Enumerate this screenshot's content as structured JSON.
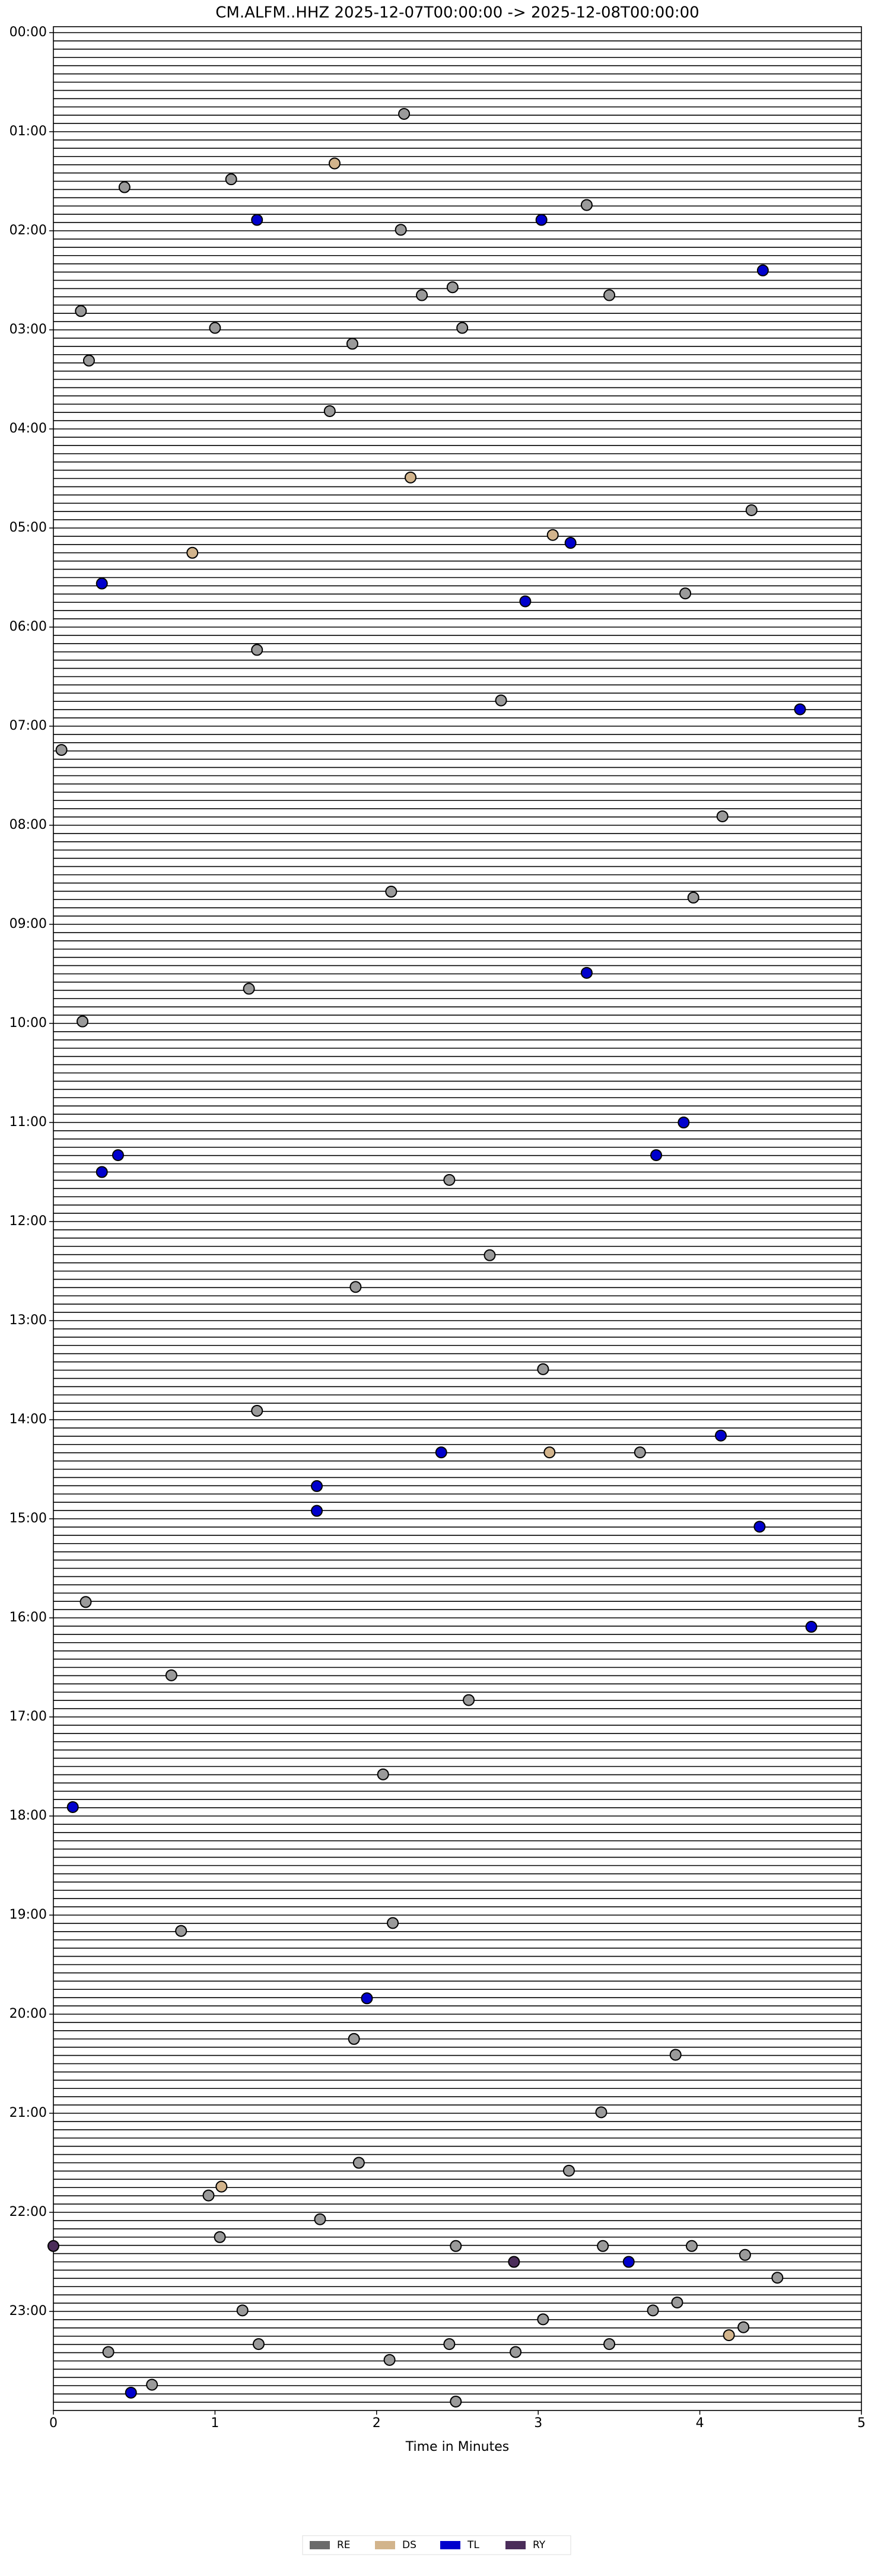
{
  "chart_data": {
    "type": "scatter",
    "title": "CM.ALFM..HHZ  2025-12-07T00:00:00 -> 2025-12-08T00:00:00",
    "xlabel": "Time in Minutes",
    "xlim": [
      0,
      5
    ],
    "xticks": [
      0,
      1,
      2,
      3,
      4,
      5
    ],
    "ylim": [
      0,
      24
    ],
    "y_inverted": true,
    "yticks": [
      {
        "value": 0,
        "label": "00:00"
      },
      {
        "value": 1,
        "label": "01:00"
      },
      {
        "value": 2,
        "label": "02:00"
      },
      {
        "value": 3,
        "label": "03:00"
      },
      {
        "value": 4,
        "label": "04:00"
      },
      {
        "value": 5,
        "label": "05:00"
      },
      {
        "value": 6,
        "label": "06:00"
      },
      {
        "value": 7,
        "label": "07:00"
      },
      {
        "value": 8,
        "label": "08:00"
      },
      {
        "value": 9,
        "label": "09:00"
      },
      {
        "value": 10,
        "label": "10:00"
      },
      {
        "value": 11,
        "label": "11:00"
      },
      {
        "value": 12,
        "label": "12:00"
      },
      {
        "value": 13,
        "label": "13:00"
      },
      {
        "value": 14,
        "label": "14:00"
      },
      {
        "value": 15,
        "label": "15:00"
      },
      {
        "value": 16,
        "label": "16:00"
      },
      {
        "value": 17,
        "label": "17:00"
      },
      {
        "value": 18,
        "label": "18:00"
      },
      {
        "value": 19,
        "label": "19:00"
      },
      {
        "value": 20,
        "label": "20:00"
      },
      {
        "value": 21,
        "label": "21:00"
      },
      {
        "value": 22,
        "label": "22:00"
      },
      {
        "value": 23,
        "label": "23:00"
      }
    ],
    "series": [
      {
        "name": "RE",
        "color": "#9a9a9a",
        "legend_color": "#6a6a6a",
        "x": [
          2.17,
          1.1,
          0.44,
          3.3,
          2.15,
          2.47,
          2.28,
          3.44,
          0.17,
          2.53,
          1.0,
          1.85,
          0.22,
          1.71,
          4.32,
          3.91,
          1.26,
          2.77,
          0.05,
          4.14,
          2.09,
          3.96,
          1.21,
          0.18,
          2.45,
          2.7,
          1.87,
          3.03,
          1.26,
          3.63,
          0.2,
          0.73,
          2.57,
          2.04,
          0.79,
          2.1,
          1.86,
          3.85,
          3.39,
          1.89,
          3.19,
          0.96,
          1.65,
          1.03,
          2.49,
          3.95,
          3.4,
          4.28,
          4.48,
          3.86,
          3.71,
          1.17,
          3.03,
          4.27,
          1.27,
          2.45,
          3.44,
          0.34,
          2.86,
          2.08,
          0.61,
          2.49
        ],
        "values": [
          0.82,
          1.48,
          1.56,
          1.74,
          1.99,
          2.57,
          2.65,
          2.65,
          2.81,
          2.98,
          2.98,
          3.14,
          3.31,
          3.82,
          4.82,
          5.66,
          6.23,
          6.74,
          7.24,
          7.91,
          8.67,
          8.73,
          9.65,
          9.98,
          11.58,
          12.34,
          12.66,
          13.49,
          13.91,
          14.33,
          15.84,
          16.58,
          16.83,
          17.58,
          19.16,
          19.08,
          20.25,
          20.41,
          20.99,
          21.5,
          21.58,
          21.83,
          22.07,
          22.25,
          22.34,
          22.34,
          22.34,
          22.43,
          22.66,
          22.91,
          22.99,
          22.99,
          23.08,
          23.16,
          23.33,
          23.33,
          23.33,
          23.41,
          23.41,
          23.49,
          23.74,
          23.91
        ]
      },
      {
        "name": "DS",
        "color": "#d2b48c",
        "legend_color": "#d2b48c",
        "x": [
          1.74,
          2.21,
          3.09,
          0.86,
          3.07,
          1.04,
          4.18
        ],
        "values": [
          1.32,
          4.49,
          5.07,
          5.25,
          14.33,
          21.74,
          23.24
        ]
      },
      {
        "name": "TL",
        "color": "#0000cd",
        "legend_color": "#0000cd",
        "x": [
          1.26,
          3.02,
          4.39,
          3.2,
          0.3,
          2.92,
          4.62,
          3.3,
          3.9,
          0.4,
          3.73,
          0.3,
          4.13,
          2.4,
          1.63,
          1.63,
          4.37,
          4.69,
          0.12,
          1.94,
          3.56,
          0.48
        ],
        "values": [
          1.89,
          1.89,
          2.4,
          5.15,
          5.56,
          5.74,
          6.83,
          9.49,
          11.0,
          11.33,
          11.33,
          11.5,
          14.16,
          14.33,
          14.67,
          14.92,
          15.08,
          16.09,
          17.91,
          19.84,
          22.5,
          23.82
        ]
      },
      {
        "name": "RY",
        "color": "#4b2d5a",
        "legend_color": "#4b2d5a",
        "x": [
          0,
          2.85
        ],
        "values": [
          22.34,
          22.5
        ]
      }
    ]
  }
}
